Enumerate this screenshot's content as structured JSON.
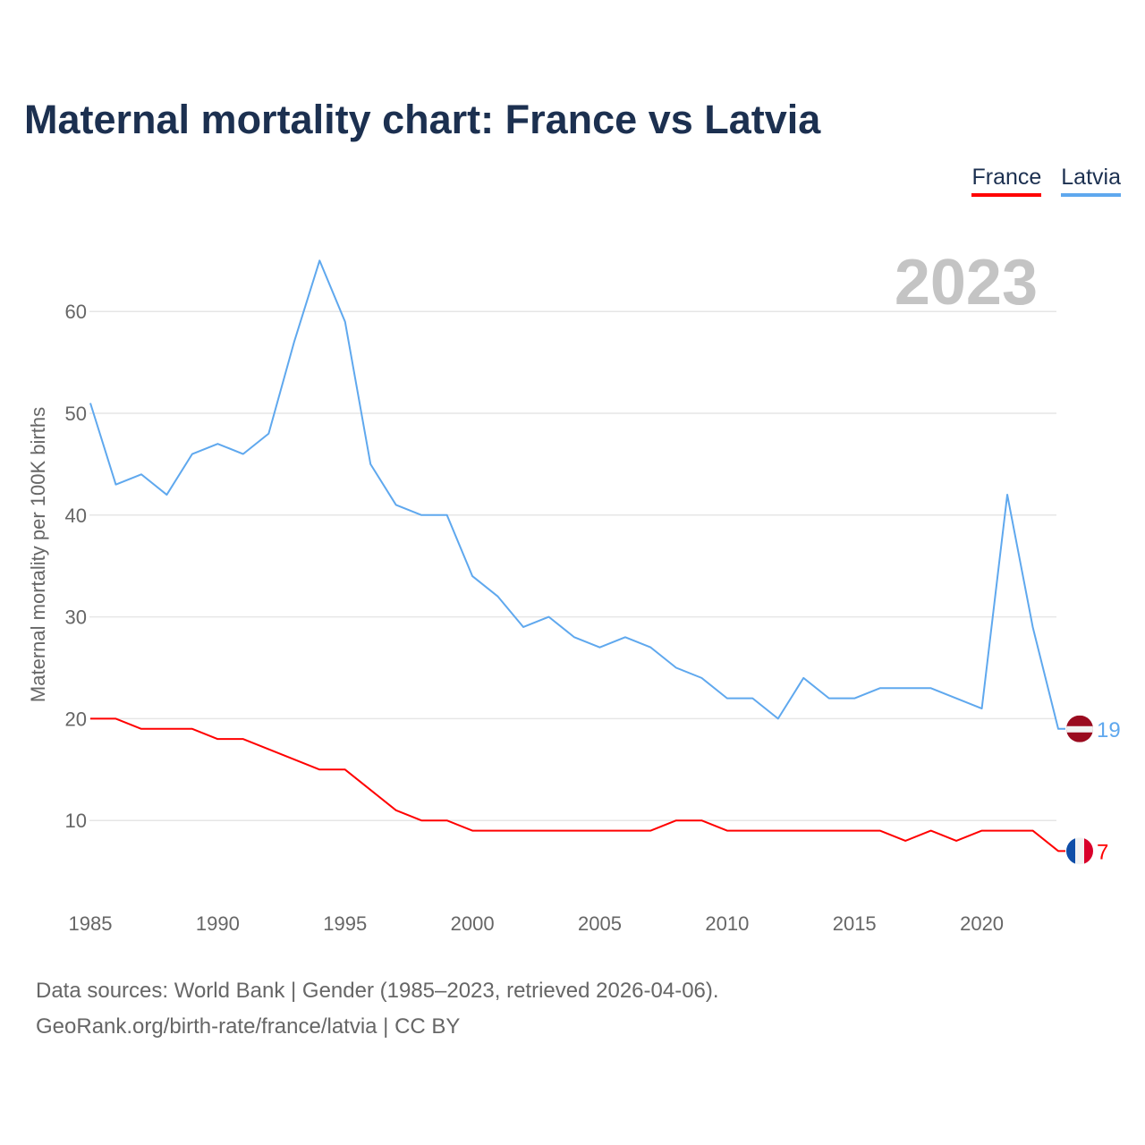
{
  "title": "Maternal mortality chart: France vs Latvia",
  "legend": [
    {
      "name": "France",
      "color": "#ff0000"
    },
    {
      "name": "Latvia",
      "color": "#5fa8ee"
    }
  ],
  "year_label": "2023",
  "footer": {
    "line1": "Data sources: World Bank | Gender (1985–2023, retrieved 2026-04-06).",
    "line2": "GeoRank.org/birth-rate/france/latvia | CC BY"
  },
  "chart_data": {
    "type": "line",
    "title": "Maternal mortality chart: France vs Latvia",
    "xlabel": "",
    "ylabel": "Maternal mortality per 100K births",
    "x": [
      1985,
      1986,
      1987,
      1988,
      1989,
      1990,
      1991,
      1992,
      1993,
      1994,
      1995,
      1996,
      1997,
      1998,
      1999,
      2000,
      2001,
      2002,
      2003,
      2004,
      2005,
      2006,
      2007,
      2008,
      2009,
      2010,
      2011,
      2012,
      2013,
      2014,
      2015,
      2016,
      2017,
      2018,
      2019,
      2020,
      2021,
      2022,
      2023
    ],
    "xticks": [
      1985,
      1990,
      1995,
      2000,
      2005,
      2010,
      2015,
      2020
    ],
    "yticks": [
      10,
      20,
      30,
      40,
      50,
      60
    ],
    "ylim": [
      0,
      70
    ],
    "xlim": [
      1985,
      2023
    ],
    "grid": true,
    "legend_position": "top-right",
    "series": [
      {
        "name": "France",
        "color": "#ff0000",
        "end_label": "7",
        "values": [
          20,
          20,
          19,
          19,
          19,
          18,
          18,
          17,
          16,
          15,
          15,
          13,
          11,
          10,
          10,
          9,
          9,
          9,
          9,
          9,
          9,
          9,
          9,
          10,
          10,
          9,
          9,
          9,
          9,
          9,
          9,
          9,
          8,
          9,
          8,
          9,
          9,
          9,
          7
        ]
      },
      {
        "name": "Latvia",
        "color": "#5fa8ee",
        "end_label": "19",
        "values": [
          51,
          43,
          44,
          42,
          46,
          47,
          46,
          48,
          57,
          65,
          59,
          45,
          41,
          40,
          40,
          34,
          32,
          29,
          30,
          28,
          27,
          28,
          27,
          25,
          24,
          22,
          22,
          20,
          24,
          22,
          22,
          23,
          23,
          23,
          22,
          21,
          42,
          29,
          19
        ]
      }
    ]
  }
}
